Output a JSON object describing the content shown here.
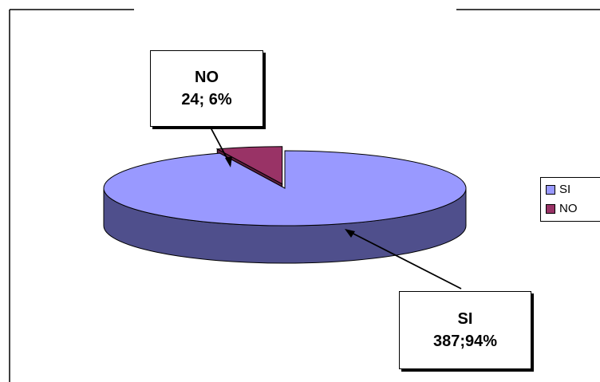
{
  "chart_data": {
    "type": "pie",
    "style": "3d-exploded",
    "slices": [
      {
        "label": "SI",
        "value": 387,
        "percent": 94,
        "color": "#9999ff",
        "side_color": "#4f4f8c",
        "callout": "387;94%"
      },
      {
        "label": "NO",
        "value": 24,
        "percent": 6,
        "color": "#993366",
        "side_color": "#5c1f3d",
        "callout": "24; 6%"
      }
    ],
    "legend": {
      "position": "right",
      "entries": [
        "SI",
        "NO"
      ]
    }
  }
}
